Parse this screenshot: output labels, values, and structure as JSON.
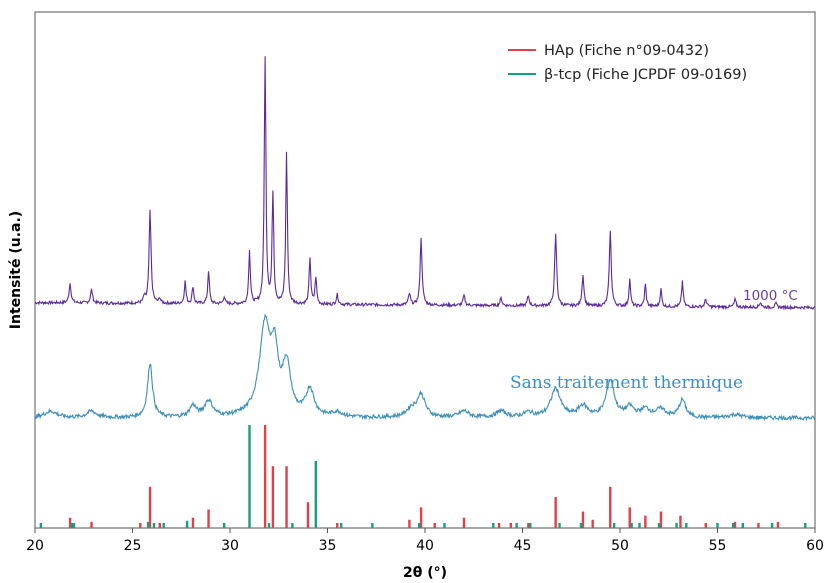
{
  "chart_data": {
    "type": "line",
    "xlabel": "2θ (°)",
    "ylabel": "Intensité (u.a.)",
    "xlim": [
      20,
      60
    ],
    "x_ticks": [
      20,
      25,
      30,
      35,
      40,
      45,
      50,
      55,
      60
    ],
    "grid": false,
    "legend": {
      "placement": "top-right",
      "entries": [
        {
          "name": "HAp (Fiche n°09-0432)",
          "color": "#e0404a"
        },
        {
          "name": "β-tcp (Fiche JCPDF 09-0169)",
          "color": "#13a07e"
        }
      ]
    },
    "annotations": [
      {
        "text": "1000 °C",
        "color": "#6b3ca0"
      },
      {
        "text": "Sans traitement thermique",
        "color": "#3a8fcb"
      }
    ],
    "series": [
      {
        "label": "1000 °C",
        "color": "#5a2a9a",
        "baseline": 0.3,
        "peaks": [
          [
            21.8,
            0.8,
            0.06
          ],
          [
            22.9,
            0.55,
            0.06
          ],
          [
            25.6,
            0.25,
            0.05
          ],
          [
            25.9,
            3.75,
            0.06
          ],
          [
            26.4,
            0.2,
            0.05
          ],
          [
            27.7,
            0.9,
            0.05
          ],
          [
            28.1,
            0.7,
            0.05
          ],
          [
            28.9,
            1.35,
            0.05
          ],
          [
            29.7,
            0.3,
            0.05
          ],
          [
            31.0,
            2.2,
            0.05
          ],
          [
            31.8,
            10.0,
            0.05
          ],
          [
            32.2,
            4.5,
            0.05
          ],
          [
            32.9,
            6.2,
            0.05
          ],
          [
            34.1,
            1.9,
            0.05
          ],
          [
            34.4,
            1.1,
            0.05
          ],
          [
            35.5,
            0.4,
            0.06
          ],
          [
            39.2,
            0.45,
            0.06
          ],
          [
            39.8,
            2.7,
            0.06
          ],
          [
            42.0,
            0.4,
            0.06
          ],
          [
            43.9,
            0.3,
            0.06
          ],
          [
            45.3,
            0.4,
            0.06
          ],
          [
            46.7,
            2.9,
            0.06
          ],
          [
            48.1,
            1.25,
            0.06
          ],
          [
            49.5,
            3.05,
            0.06
          ],
          [
            50.5,
            1.1,
            0.05
          ],
          [
            51.3,
            0.9,
            0.05
          ],
          [
            52.1,
            0.7,
            0.05
          ],
          [
            53.2,
            1.05,
            0.05
          ],
          [
            54.4,
            0.3,
            0.06
          ],
          [
            55.9,
            0.3,
            0.06
          ],
          [
            57.2,
            0.2,
            0.06
          ],
          [
            58.0,
            0.15,
            0.06
          ]
        ]
      },
      {
        "label": "Sans traitement thermique",
        "color": "#3a8fb8",
        "baseline": 0.0,
        "peaks": [
          [
            20.8,
            0.2,
            0.4
          ],
          [
            22.9,
            0.2,
            0.3
          ],
          [
            25.9,
            1.7,
            0.15
          ],
          [
            28.1,
            0.35,
            0.2
          ],
          [
            28.9,
            0.5,
            0.25
          ],
          [
            31.8,
            2.85,
            0.35
          ],
          [
            32.3,
            1.6,
            0.2
          ],
          [
            32.9,
            1.55,
            0.25
          ],
          [
            34.1,
            0.85,
            0.25
          ],
          [
            35.5,
            0.15,
            0.3
          ],
          [
            39.3,
            0.25,
            0.3
          ],
          [
            39.8,
            0.7,
            0.25
          ],
          [
            42.0,
            0.2,
            0.3
          ],
          [
            43.9,
            0.2,
            0.3
          ],
          [
            45.3,
            0.15,
            0.3
          ],
          [
            46.7,
            0.9,
            0.3
          ],
          [
            48.1,
            0.35,
            0.3
          ],
          [
            49.5,
            1.15,
            0.25
          ],
          [
            50.5,
            0.3,
            0.25
          ],
          [
            51.3,
            0.25,
            0.3
          ],
          [
            52.1,
            0.25,
            0.3
          ],
          [
            53.2,
            0.55,
            0.2
          ],
          [
            55.9,
            0.1,
            0.4
          ]
        ]
      }
    ],
    "reference_hap": [
      [
        21.8,
        10
      ],
      [
        22.9,
        6
      ],
      [
        25.4,
        4
      ],
      [
        25.9,
        40
      ],
      [
        26.4,
        4
      ],
      [
        28.1,
        10
      ],
      [
        28.9,
        18
      ],
      [
        31.8,
        100
      ],
      [
        32.2,
        60
      ],
      [
        32.9,
        60
      ],
      [
        34.0,
        25
      ],
      [
        35.5,
        4
      ],
      [
        39.2,
        8
      ],
      [
        39.8,
        20
      ],
      [
        40.5,
        3
      ],
      [
        42.0,
        10
      ],
      [
        43.8,
        4
      ],
      [
        44.4,
        3
      ],
      [
        45.3,
        3
      ],
      [
        46.7,
        30
      ],
      [
        48.1,
        16
      ],
      [
        48.6,
        8
      ],
      [
        49.5,
        40
      ],
      [
        50.5,
        20
      ],
      [
        51.3,
        12
      ],
      [
        52.1,
        16
      ],
      [
        53.1,
        12
      ],
      [
        54.4,
        3
      ],
      [
        55.9,
        6
      ],
      [
        56.3,
        3
      ],
      [
        57.1,
        4
      ],
      [
        58.1,
        6
      ]
    ],
    "reference_tcp": [
      [
        20.3,
        2
      ],
      [
        21.9,
        4
      ],
      [
        22.0,
        2
      ],
      [
        25.8,
        6
      ],
      [
        26.1,
        2
      ],
      [
        26.6,
        2
      ],
      [
        27.8,
        7
      ],
      [
        29.7,
        3
      ],
      [
        31.0,
        100
      ],
      [
        32.0,
        3
      ],
      [
        33.2,
        2
      ],
      [
        34.4,
        65
      ],
      [
        35.7,
        2
      ],
      [
        37.3,
        2
      ],
      [
        39.7,
        2
      ],
      [
        41.0,
        3
      ],
      [
        43.5,
        2
      ],
      [
        44.7,
        2
      ],
      [
        45.4,
        2
      ],
      [
        46.9,
        3
      ],
      [
        48.0,
        4
      ],
      [
        49.7,
        3
      ],
      [
        50.6,
        3
      ],
      [
        51.0,
        2
      ],
      [
        52.0,
        3
      ],
      [
        52.9,
        5
      ],
      [
        53.4,
        3
      ],
      [
        55.0,
        3
      ],
      [
        55.8,
        2
      ],
      [
        56.3,
        3
      ],
      [
        57.8,
        2
      ],
      [
        59.5,
        3
      ]
    ]
  }
}
